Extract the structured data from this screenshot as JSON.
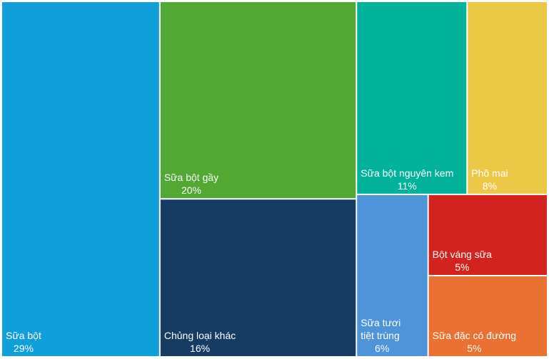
{
  "chart_data": {
    "type": "treemap",
    "categories": [
      "Sữa bột",
      "Sữa bột gầy",
      "Chủng loại khác",
      "Sữa bột nguyên kem",
      "Phô mai",
      "Sữa tươi tiệt trùng",
      "Bột váng sữa",
      "Sữa đặc có đường"
    ],
    "values": [
      29,
      20,
      16,
      11,
      8,
      6,
      5,
      5
    ],
    "value_labels": [
      "29%",
      "20%",
      "16%",
      "11%",
      "8%",
      "6%",
      "5%",
      "5%"
    ],
    "colors": [
      "#109fd8",
      "#52a833",
      "#173c64",
      "#00b39a",
      "#ebc947",
      "#4f93d8",
      "#d2231e",
      "#e97232"
    ]
  }
}
